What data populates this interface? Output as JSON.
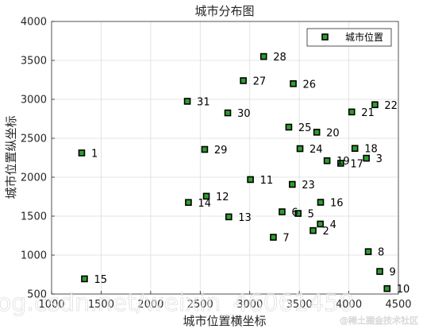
{
  "chart_data": {
    "type": "scatter",
    "title": "城市分布图",
    "xlabel": "城市位置横坐标",
    "ylabel": "城市位置纵坐标",
    "xlim": [
      1000,
      4500
    ],
    "ylim": [
      500,
      4000
    ],
    "xticks": [
      "1000",
      "1500",
      "2000",
      "2500",
      "3000",
      "3500",
      "4000",
      "4500"
    ],
    "yticks": [
      "500",
      "1000",
      "1500",
      "2000",
      "2500",
      "3000",
      "3500",
      "4000"
    ],
    "grid": true,
    "legend": {
      "position": "top-right",
      "entries": [
        "城市位置"
      ]
    },
    "series": [
      {
        "name": "城市位置",
        "marker": "square",
        "marker_face": "#2ca02c",
        "marker_edge": "#000000",
        "points": [
          {
            "label": "1",
            "x": 1304,
            "y": 2312
          },
          {
            "label": "2",
            "x": 3639,
            "y": 1315
          },
          {
            "label": "3",
            "x": 4177,
            "y": 2244
          },
          {
            "label": "4",
            "x": 3712,
            "y": 1399
          },
          {
            "label": "5",
            "x": 3488,
            "y": 1535
          },
          {
            "label": "6",
            "x": 3326,
            "y": 1556
          },
          {
            "label": "7",
            "x": 3238,
            "y": 1229
          },
          {
            "label": "8",
            "x": 4196,
            "y": 1044
          },
          {
            "label": "9",
            "x": 4312,
            "y": 790
          },
          {
            "label": "10",
            "x": 4386,
            "y": 570
          },
          {
            "label": "11",
            "x": 3007,
            "y": 1970
          },
          {
            "label": "12",
            "x": 2562,
            "y": 1756
          },
          {
            "label": "13",
            "x": 2788,
            "y": 1491
          },
          {
            "label": "14",
            "x": 2381,
            "y": 1676
          },
          {
            "label": "15",
            "x": 1332,
            "y": 695
          },
          {
            "label": "16",
            "x": 3715,
            "y": 1678
          },
          {
            "label": "17",
            "x": 3918,
            "y": 2179
          },
          {
            "label": "18",
            "x": 4061,
            "y": 2370
          },
          {
            "label": "19",
            "x": 3780,
            "y": 2212
          },
          {
            "label": "20",
            "x": 3676,
            "y": 2578
          },
          {
            "label": "21",
            "x": 4029,
            "y": 2838
          },
          {
            "label": "22",
            "x": 4263,
            "y": 2931
          },
          {
            "label": "23",
            "x": 3429,
            "y": 1908
          },
          {
            "label": "24",
            "x": 3507,
            "y": 2367
          },
          {
            "label": "25",
            "x": 3394,
            "y": 2643
          },
          {
            "label": "26",
            "x": 3439,
            "y": 3201
          },
          {
            "label": "27",
            "x": 2935,
            "y": 3240
          },
          {
            "label": "28",
            "x": 3140,
            "y": 3550
          },
          {
            "label": "29",
            "x": 2545,
            "y": 2357
          },
          {
            "label": "30",
            "x": 2778,
            "y": 2826
          },
          {
            "label": "31",
            "x": 2370,
            "y": 2975
          }
        ]
      }
    ]
  },
  "watermarks": {
    "url_text": "og.csdn.net/weixin_46061450",
    "site_text": "@稀土掘金技术社区"
  }
}
